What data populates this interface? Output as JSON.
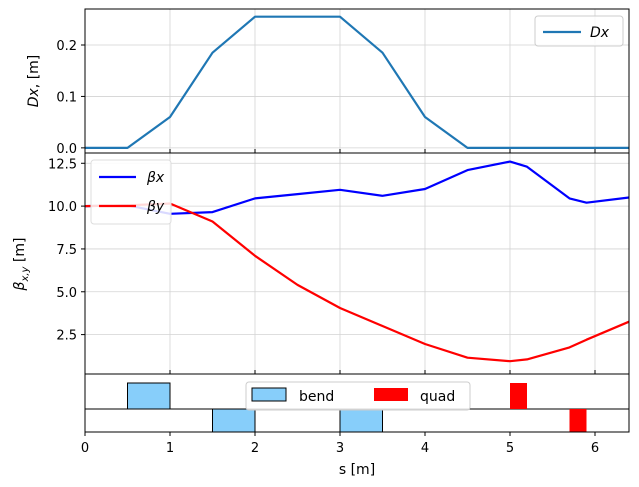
{
  "chart_data": [
    {
      "type": "line",
      "panel": "dispersion",
      "ylabel": "Dx, [m]",
      "ylabel_var": "Dx",
      "ylabel_unit": ", [m]",
      "xlim": [
        0,
        6.4
      ],
      "ylim": [
        -0.01,
        0.27
      ],
      "yticks": [
        0.0,
        0.1,
        0.2
      ],
      "ytick_labels": [
        "0.0",
        "0.1",
        "0.2"
      ],
      "grid": true,
      "legend": {
        "placement": "top-right",
        "entries": [
          "Dx"
        ]
      },
      "series": [
        {
          "name": "Dx",
          "color": "#1f77b4",
          "x": [
            0,
            0.5,
            1.0,
            1.5,
            2.0,
            2.5,
            3.0,
            3.5,
            4.0,
            4.5,
            5.0,
            5.5,
            6.0,
            6.4
          ],
          "y": [
            0,
            0,
            0.06,
            0.185,
            0.255,
            0.255,
            0.255,
            0.185,
            0.06,
            0,
            0,
            0,
            0,
            0
          ]
        }
      ]
    },
    {
      "type": "line",
      "panel": "beta",
      "ylabel": "β_x,y [m]",
      "xlim": [
        0,
        6.4
      ],
      "ylim": [
        0.2,
        13.1
      ],
      "yticks": [
        2.5,
        5.0,
        7.5,
        10.0,
        12.5
      ],
      "ytick_labels": [
        "2.5",
        "5.0",
        "7.5",
        "10.0",
        "12.5"
      ],
      "grid": true,
      "legend": {
        "placement": "top-left",
        "entries": [
          "βx",
          "βy"
        ]
      },
      "series": [
        {
          "name": "βx",
          "color": "#0000ff",
          "x": [
            0,
            0.5,
            1.0,
            1.5,
            2.0,
            2.5,
            3.0,
            3.5,
            4.0,
            4.5,
            5.0,
            5.2,
            5.7,
            5.9,
            6.4
          ],
          "y": [
            10.0,
            10.05,
            9.55,
            9.65,
            10.45,
            10.7,
            10.95,
            10.6,
            11.0,
            12.1,
            12.6,
            12.3,
            10.45,
            10.2,
            10.5
          ]
        },
        {
          "name": "βy",
          "color": "#ff0000",
          "x": [
            0,
            0.5,
            1.0,
            1.5,
            2.0,
            2.5,
            3.0,
            3.5,
            4.0,
            4.5,
            5.0,
            5.2,
            5.7,
            5.9,
            6.4
          ],
          "y": [
            10.0,
            10.05,
            10.15,
            9.1,
            7.1,
            5.4,
            4.05,
            3.0,
            1.95,
            1.15,
            0.95,
            1.05,
            1.75,
            2.2,
            3.25
          ]
        }
      ]
    },
    {
      "type": "bar",
      "panel": "lattice",
      "xlabel": "s [m]",
      "xlim": [
        0,
        6.4
      ],
      "xticks": [
        0,
        1,
        2,
        3,
        4,
        5,
        6
      ],
      "xtick_labels": [
        "0",
        "1",
        "2",
        "3",
        "4",
        "5",
        "6"
      ],
      "legend": {
        "placement": "center",
        "entries": [
          "bend",
          "quad"
        ]
      },
      "colors": {
        "bend": "#87cefa",
        "quad": "#ff0000"
      },
      "elements": [
        {
          "kind": "bend",
          "s_start": 0.5,
          "s_end": 1.0,
          "side": "up"
        },
        {
          "kind": "bend",
          "s_start": 1.5,
          "s_end": 2.0,
          "side": "down"
        },
        {
          "kind": "bend",
          "s_start": 3.0,
          "s_end": 3.5,
          "side": "down"
        },
        {
          "kind": "quad",
          "s_start": 5.0,
          "s_end": 5.2,
          "side": "up"
        },
        {
          "kind": "quad",
          "s_start": 5.7,
          "s_end": 5.9,
          "side": "down"
        }
      ]
    }
  ]
}
